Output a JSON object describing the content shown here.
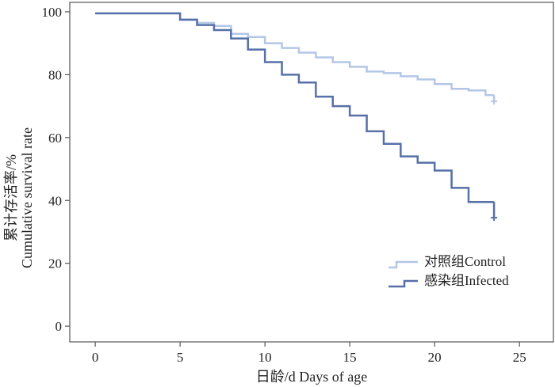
{
  "chart_data": {
    "type": "line",
    "title": "",
    "xlabel": "日龄/d  Days of age",
    "ylabel_line1": "累计存活率/%",
    "ylabel_line2": "Cumulative survival rate",
    "xlim": [
      -1.5,
      27
    ],
    "ylim": [
      -5,
      103
    ],
    "xticks": [
      0,
      5,
      10,
      15,
      20,
      25
    ],
    "yticks": [
      0,
      20,
      40,
      60,
      80,
      100
    ],
    "legend_position": "bottom-right",
    "series": [
      {
        "name": "对照组Control",
        "color": "#b4c6e7",
        "steps": [
          [
            0,
            99.5
          ],
          [
            5,
            97.5
          ],
          [
            6,
            96.5
          ],
          [
            7,
            95.5
          ],
          [
            8,
            93
          ],
          [
            9,
            92
          ],
          [
            10,
            90
          ],
          [
            11,
            88.5
          ],
          [
            12,
            87
          ],
          [
            13,
            85.5
          ],
          [
            14,
            84
          ],
          [
            15,
            82.5
          ],
          [
            16,
            81
          ],
          [
            17,
            80.5
          ],
          [
            18,
            79.5
          ],
          [
            19,
            78.5
          ],
          [
            20,
            77
          ],
          [
            21,
            75.5
          ],
          [
            22,
            75
          ],
          [
            23,
            73.5
          ],
          [
            23.5,
            73.5
          ]
        ],
        "censor": [
          23.5,
          71.5
        ]
      },
      {
        "name": "感染组Infected",
        "color": "#5670a8",
        "steps": [
          [
            0,
            99.5
          ],
          [
            5,
            97.5
          ],
          [
            6,
            95.8
          ],
          [
            7,
            94.2
          ],
          [
            8,
            91.5
          ],
          [
            9,
            88
          ],
          [
            10,
            84
          ],
          [
            11,
            80
          ],
          [
            12,
            77.5
          ],
          [
            13,
            73
          ],
          [
            14,
            70
          ],
          [
            15,
            67
          ],
          [
            16,
            62
          ],
          [
            17,
            58
          ],
          [
            18,
            54
          ],
          [
            19,
            52
          ],
          [
            20,
            49.5
          ],
          [
            21,
            44
          ],
          [
            22,
            39.5
          ],
          [
            23.5,
            39.5
          ]
        ],
        "censor": [
          23.5,
          34.5
        ]
      }
    ]
  }
}
